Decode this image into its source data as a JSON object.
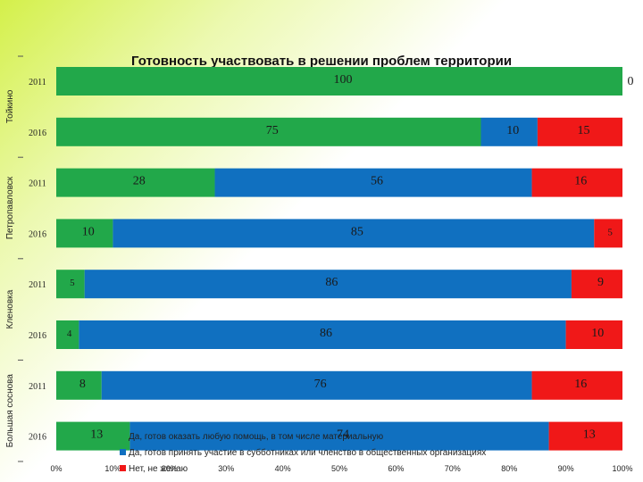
{
  "chart_data": {
    "type": "bar",
    "orientation": "horizontal",
    "stacked": true,
    "title": "Готовность участвовать в решении проблем территории",
    "groups": [
      "Тойкино",
      "Петропавловск",
      "Кленовка",
      "Большая соснова"
    ],
    "rows": [
      {
        "group": "Тойкино",
        "year": "2011"
      },
      {
        "group": "Тойкино",
        "year": "2016"
      },
      {
        "group": "Петропавловск",
        "year": "2011"
      },
      {
        "group": "Петропавловск",
        "year": "2016"
      },
      {
        "group": "Кленовка",
        "year": "2011"
      },
      {
        "group": "Кленовка",
        "year": "2016"
      },
      {
        "group": "Большая соснова",
        "year": "2011"
      },
      {
        "group": "Большая соснова",
        "year": "2016"
      }
    ],
    "series": [
      {
        "name": "Да, готов оказать любую помощь, в том числе материальную",
        "color": "#22a84a",
        "values": [
          100,
          75,
          28,
          10,
          5,
          4,
          8,
          13
        ]
      },
      {
        "name": "Да, готов принять участие в субботниках или членство в общественных организациях",
        "color": "#1070c0",
        "values": [
          0,
          10,
          56,
          85,
          86,
          86,
          76,
          74
        ]
      },
      {
        "name": "Нет, не желаю",
        "color": "#f01818",
        "values": [
          0,
          15,
          16,
          5,
          9,
          10,
          16,
          13
        ]
      }
    ],
    "extra_labels": [
      {
        "row": 0,
        "text": "0"
      }
    ],
    "xaxis": {
      "ticks": [
        "0%",
        "10%",
        "20%",
        "30%",
        "40%",
        "50%",
        "60%",
        "70%",
        "80%",
        "90%",
        "100%"
      ]
    },
    "legend": "bottom-center"
  }
}
